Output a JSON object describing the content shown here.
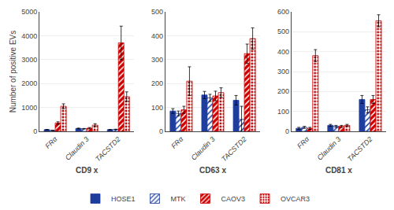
{
  "chart_data": [
    {
      "type": "bar",
      "xlabel": "CD9 x",
      "ylabel": "Number of positive EVs",
      "categories": [
        "FRα",
        "Claudin 3",
        "TACSTD2"
      ],
      "series": [
        {
          "name": "HOSE1",
          "color": "#1F3D9C",
          "values": [
            70,
            120,
            70
          ],
          "errors": [
            10,
            15,
            10
          ]
        },
        {
          "name": "MTK",
          "color": "#1F3D9C",
          "values": [
            40,
            110,
            80
          ],
          "errors": [
            10,
            10,
            10
          ]
        },
        {
          "name": "CAOV3",
          "color": "#CC0000",
          "values": [
            350,
            130,
            3700
          ],
          "errors": [
            50,
            30,
            700
          ]
        },
        {
          "name": "OVCAR3",
          "color": "#CC0000",
          "values": [
            1050,
            260,
            1450
          ],
          "errors": [
            100,
            60,
            200
          ]
        }
      ],
      "ylim": [
        0,
        5000
      ],
      "yticks": [
        0,
        1000,
        2000,
        3000,
        4000,
        5000
      ],
      "grid": true,
      "legend": "bottom"
    },
    {
      "type": "bar",
      "xlabel": "CD63 x",
      "categories": [
        "FRα",
        "Claudin 3",
        "TACSTD2"
      ],
      "series": [
        {
          "name": "HOSE1",
          "color": "#1F3D9C",
          "values": [
            85,
            152,
            130
          ],
          "errors": [
            10,
            15,
            20
          ]
        },
        {
          "name": "MTK",
          "color": "#1F3D9C",
          "values": [
            75,
            140,
            50
          ],
          "errors": [
            10,
            15,
            55
          ]
        },
        {
          "name": "CAOV3",
          "color": "#CC0000",
          "values": [
            90,
            148,
            325
          ],
          "errors": [
            15,
            20,
            40
          ]
        },
        {
          "name": "OVCAR3",
          "color": "#CC0000",
          "values": [
            210,
            162,
            388
          ],
          "errors": [
            60,
            20,
            45
          ]
        }
      ],
      "ylim": [
        0,
        500
      ],
      "yticks": [
        0,
        100,
        200,
        300,
        400,
        500
      ],
      "grid": true
    },
    {
      "type": "bar",
      "xlabel": "CD81 x",
      "categories": [
        "FRα",
        "Claudin 3",
        "TACSTD2"
      ],
      "series": [
        {
          "name": "HOSE1",
          "color": "#1F3D9C",
          "values": [
            15,
            30,
            160
          ],
          "errors": [
            5,
            5,
            20
          ]
        },
        {
          "name": "MTK",
          "color": "#1F3D9C",
          "values": [
            20,
            25,
            108
          ],
          "errors": [
            5,
            5,
            15
          ]
        },
        {
          "name": "CAOV3",
          "color": "#CC0000",
          "values": [
            15,
            25,
            160
          ],
          "errors": [
            5,
            5,
            20
          ]
        },
        {
          "name": "OVCAR3",
          "color": "#CC0000",
          "values": [
            380,
            30,
            555
          ],
          "errors": [
            30,
            5,
            30
          ]
        }
      ],
      "ylim": [
        0,
        600
      ],
      "yticks": [
        0,
        100,
        200,
        300,
        400,
        500,
        600
      ],
      "grid": true
    }
  ]
}
